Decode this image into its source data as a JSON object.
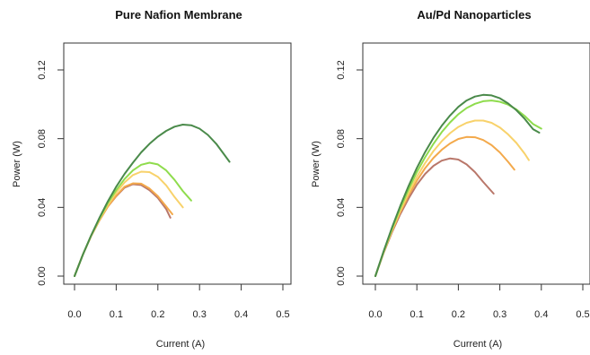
{
  "chart_data": [
    {
      "type": "line",
      "title": "Pure Nafion Membrane",
      "xlabel": "Current (A)",
      "ylabel": "Power (W)",
      "xlim": [
        0.0,
        0.5
      ],
      "ylim": [
        0.0,
        0.125
      ],
      "xticks": [
        "0.0",
        "0.1",
        "0.2",
        "0.3",
        "0.4",
        "0.5"
      ],
      "yticks": [
        "0.00",
        "0.04",
        "0.08",
        "0.12"
      ],
      "grid": false,
      "series": [
        {
          "color": "#b9776a",
          "x": [
            0.0,
            0.02,
            0.04,
            0.06,
            0.08,
            0.1,
            0.12,
            0.14,
            0.16,
            0.18,
            0.2,
            0.22,
            0.23
          ],
          "y": [
            0.0,
            0.0125,
            0.0235,
            0.0325,
            0.0405,
            0.0465,
            0.0515,
            0.0535,
            0.053,
            0.05,
            0.0455,
            0.039,
            0.034
          ]
        },
        {
          "color": "#f3a94b",
          "x": [
            0.0,
            0.02,
            0.04,
            0.06,
            0.08,
            0.1,
            0.12,
            0.14,
            0.16,
            0.18,
            0.2,
            0.22,
            0.235
          ],
          "y": [
            0.0,
            0.0125,
            0.0235,
            0.0325,
            0.0405,
            0.0468,
            0.052,
            0.054,
            0.0538,
            0.051,
            0.0465,
            0.0405,
            0.036
          ]
        },
        {
          "color": "#f8d26b",
          "x": [
            0.0,
            0.02,
            0.04,
            0.06,
            0.08,
            0.1,
            0.12,
            0.14,
            0.16,
            0.18,
            0.2,
            0.22,
            0.24,
            0.26
          ],
          "y": [
            0.0,
            0.0125,
            0.0235,
            0.033,
            0.0415,
            0.0485,
            0.0545,
            0.0588,
            0.0608,
            0.0605,
            0.0578,
            0.0528,
            0.046,
            0.04
          ]
        },
        {
          "color": "#8fdc4d",
          "x": [
            0.0,
            0.02,
            0.04,
            0.06,
            0.08,
            0.1,
            0.12,
            0.14,
            0.16,
            0.18,
            0.2,
            0.22,
            0.24,
            0.26,
            0.28
          ],
          "y": [
            0.0,
            0.0125,
            0.0238,
            0.0335,
            0.0425,
            0.05,
            0.0565,
            0.0615,
            0.0648,
            0.066,
            0.065,
            0.0615,
            0.056,
            0.0495,
            0.044
          ]
        },
        {
          "color": "#4a8a4a",
          "x": [
            0.0,
            0.02,
            0.04,
            0.06,
            0.08,
            0.1,
            0.12,
            0.14,
            0.16,
            0.18,
            0.2,
            0.22,
            0.24,
            0.26,
            0.28,
            0.3,
            0.32,
            0.34,
            0.36,
            0.372
          ],
          "y": [
            0.0,
            0.0125,
            0.0238,
            0.034,
            0.0435,
            0.052,
            0.0595,
            0.066,
            0.072,
            0.077,
            0.0812,
            0.0845,
            0.087,
            0.0882,
            0.0878,
            0.0858,
            0.0822,
            0.077,
            0.0705,
            0.0665
          ]
        }
      ]
    },
    {
      "type": "line",
      "title": "Au/Pd Nanoparticles",
      "xlabel": "Current (A)",
      "ylabel": "Power (W)",
      "xlim": [
        0.0,
        0.5
      ],
      "ylim": [
        0.0,
        0.125
      ],
      "xticks": [
        "0.0",
        "0.1",
        "0.2",
        "0.3",
        "0.4",
        "0.5"
      ],
      "yticks": [
        "0.00",
        "0.04",
        "0.08",
        "0.12"
      ],
      "grid": false,
      "series": [
        {
          "color": "#b9776a",
          "x": [
            0.0,
            0.02,
            0.04,
            0.06,
            0.08,
            0.1,
            0.12,
            0.14,
            0.16,
            0.18,
            0.2,
            0.22,
            0.24,
            0.26,
            0.285
          ],
          "y": [
            0.0,
            0.0135,
            0.0255,
            0.036,
            0.0452,
            0.0532,
            0.0595,
            0.0642,
            0.0672,
            0.0685,
            0.0678,
            0.065,
            0.0605,
            0.0548,
            0.048
          ]
        },
        {
          "color": "#f3a94b",
          "x": [
            0.0,
            0.02,
            0.04,
            0.06,
            0.08,
            0.1,
            0.12,
            0.14,
            0.16,
            0.18,
            0.2,
            0.22,
            0.24,
            0.26,
            0.28,
            0.3,
            0.32,
            0.335
          ],
          "y": [
            0.0,
            0.0138,
            0.0262,
            0.0372,
            0.047,
            0.0555,
            0.0628,
            0.0688,
            0.0735,
            0.0772,
            0.0798,
            0.081,
            0.0808,
            0.0792,
            0.0762,
            0.072,
            0.0665,
            0.062
          ]
        },
        {
          "color": "#f8d26b",
          "x": [
            0.0,
            0.02,
            0.04,
            0.06,
            0.08,
            0.1,
            0.12,
            0.14,
            0.16,
            0.18,
            0.2,
            0.22,
            0.24,
            0.26,
            0.28,
            0.3,
            0.32,
            0.34,
            0.36,
            0.37
          ],
          "y": [
            0.0,
            0.014,
            0.0268,
            0.0382,
            0.0485,
            0.0578,
            0.0658,
            0.0728,
            0.0785,
            0.0832,
            0.0868,
            0.0892,
            0.0905,
            0.0905,
            0.0892,
            0.0865,
            0.0825,
            0.0775,
            0.0712,
            0.0675
          ]
        },
        {
          "color": "#8fdc4d",
          "x": [
            0.0,
            0.02,
            0.04,
            0.06,
            0.08,
            0.1,
            0.12,
            0.14,
            0.16,
            0.18,
            0.2,
            0.22,
            0.24,
            0.26,
            0.28,
            0.3,
            0.32,
            0.34,
            0.36,
            0.38,
            0.4
          ],
          "y": [
            0.0,
            0.0142,
            0.0275,
            0.0395,
            0.0505,
            0.0605,
            0.0692,
            0.077,
            0.0838,
            0.0895,
            0.0942,
            0.0978,
            0.1003,
            0.1018,
            0.1022,
            0.1015,
            0.0998,
            0.097,
            0.0932,
            0.0885,
            0.0858
          ]
        },
        {
          "color": "#4a8a4a",
          "x": [
            0.0,
            0.02,
            0.04,
            0.06,
            0.08,
            0.1,
            0.12,
            0.14,
            0.16,
            0.18,
            0.2,
            0.22,
            0.24,
            0.26,
            0.28,
            0.3,
            0.32,
            0.34,
            0.36,
            0.38,
            0.395
          ],
          "y": [
            0.0,
            0.0145,
            0.0282,
            0.0408,
            0.0525,
            0.063,
            0.0722,
            0.0805,
            0.0875,
            0.0935,
            0.0985,
            0.1022,
            0.1045,
            0.1055,
            0.1052,
            0.1035,
            0.1005,
            0.0965,
            0.0915,
            0.0855,
            0.0835
          ]
        }
      ]
    }
  ]
}
